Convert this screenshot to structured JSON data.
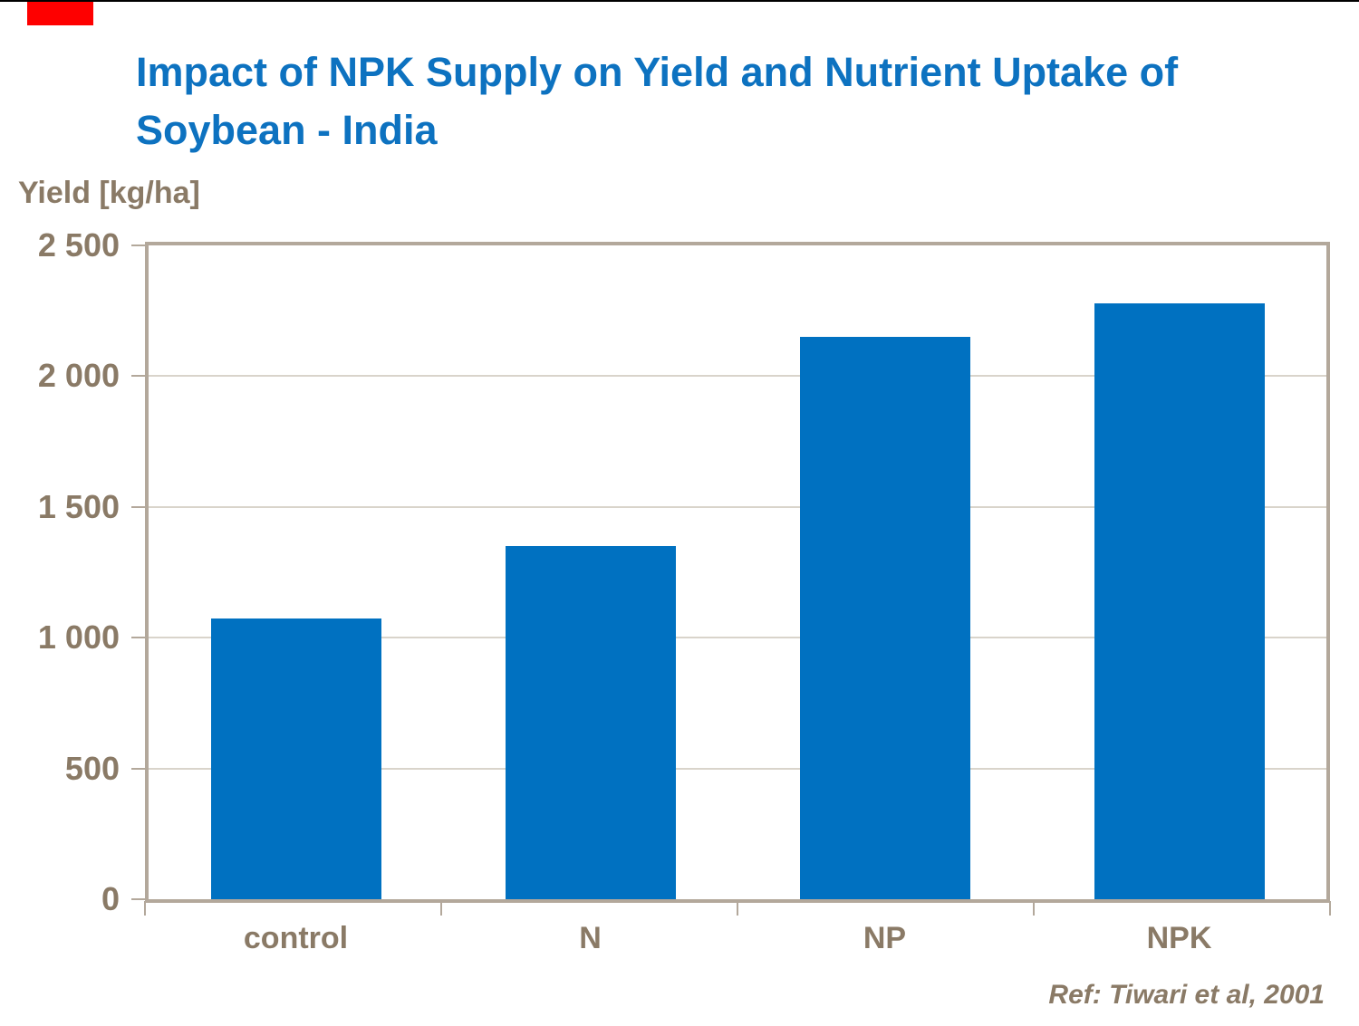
{
  "marker": {
    "color": "#fe0000"
  },
  "title": {
    "full_text": "Impact of NPK Supply on Yield and Nutrient Uptake of Soybean - India",
    "lines": [
      "Impact of NPK Supply on Yield and Nutrient Uptake of",
      "Soybean - India"
    ],
    "color": "#0d72c0"
  },
  "chart_data": {
    "type": "bar",
    "title": "Impact of NPK Supply on Yield and Nutrient Uptake of Soybean - India",
    "ylabel": "Yield [kg/ha]",
    "xlabel": "",
    "categories": [
      "control",
      "N",
      "NP",
      "NPK"
    ],
    "values": [
      1075,
      1350,
      2150,
      2280
    ],
    "ylim": [
      0,
      2500
    ],
    "yticks": [
      {
        "value": 0,
        "label": "0"
      },
      {
        "value": 500,
        "label": "500"
      },
      {
        "value": 1000,
        "label": "1 000"
      },
      {
        "value": 1500,
        "label": "1 500"
      },
      {
        "value": 2000,
        "label": "2 000"
      },
      {
        "value": 2500,
        "label": "2 500"
      }
    ],
    "grid": true,
    "legend": "none",
    "bar_color": "#0071c1",
    "axis_color": "#b3a89b",
    "gridline_color": "#d9d4cb",
    "tick_label_color": "#8a7a66"
  },
  "footer": {
    "reference": "Ref: Tiwari et al, 2001"
  }
}
